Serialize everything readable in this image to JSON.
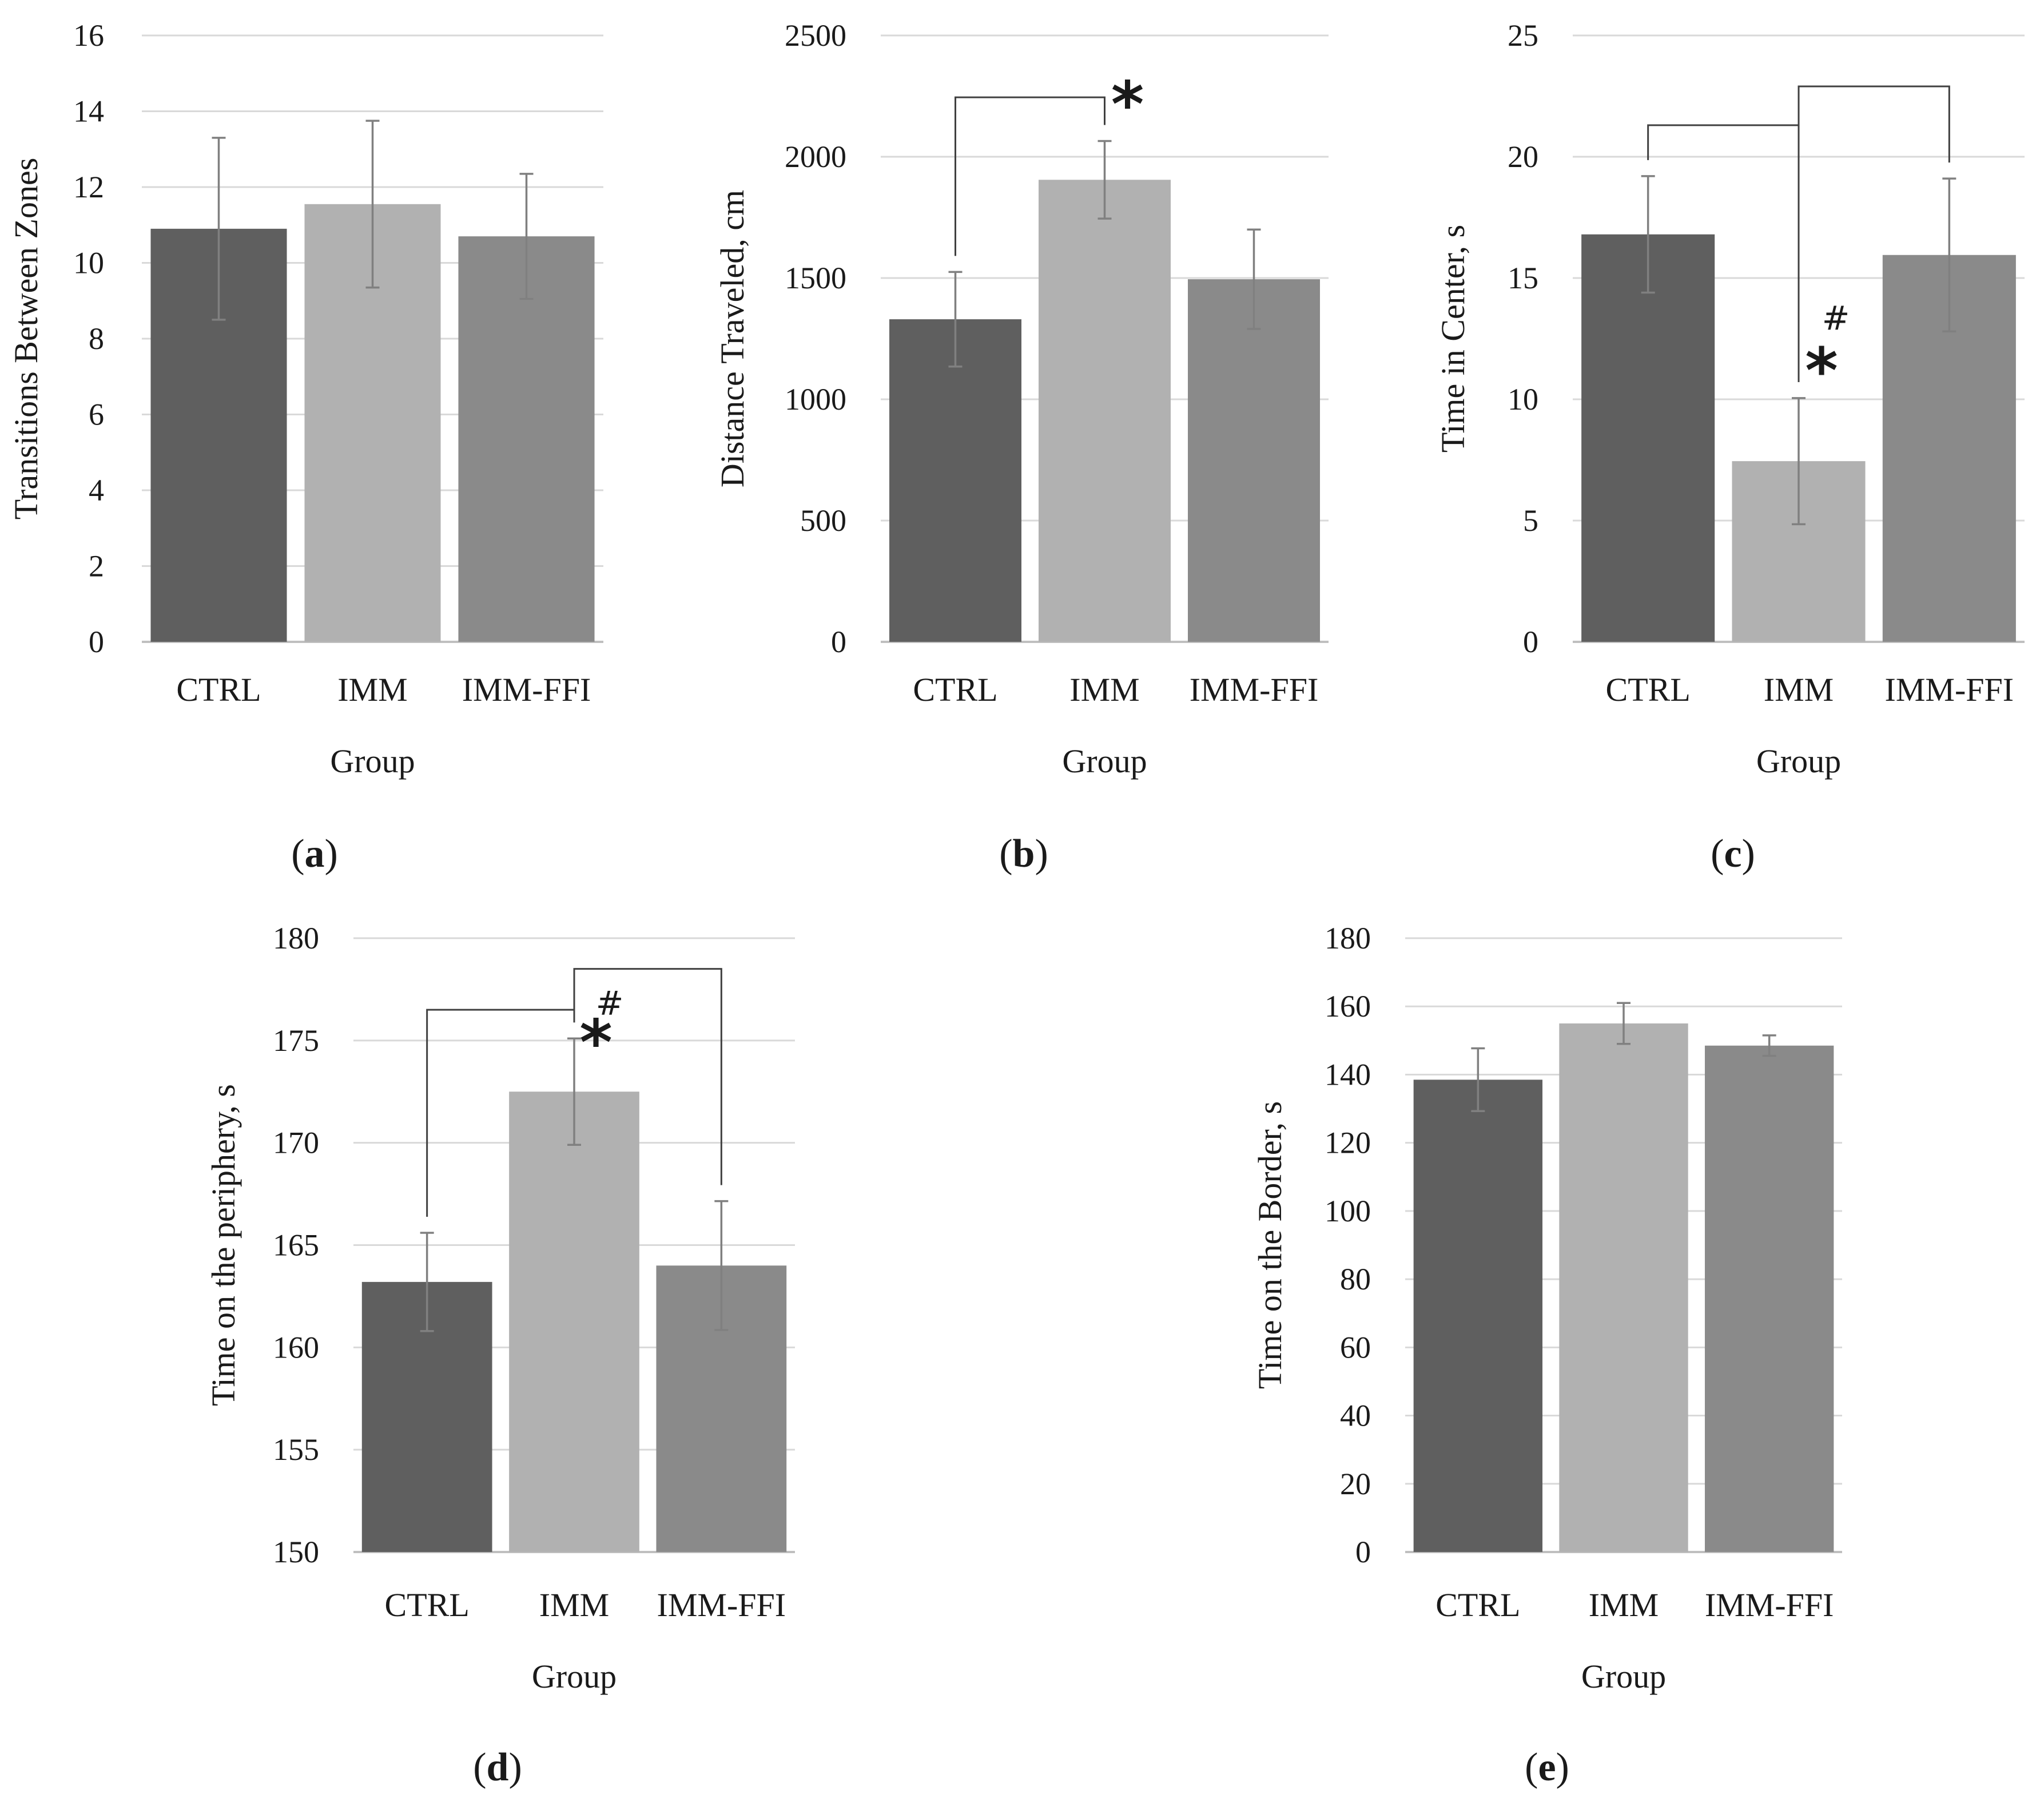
{
  "chart_data": [
    {
      "panel": "(a)",
      "type": "bar",
      "categories": [
        "CTRL",
        "IMM",
        "IMM-FFI"
      ],
      "values": [
        10.9,
        11.55,
        10.7
      ],
      "errors": [
        2.4,
        2.2,
        1.65
      ],
      "colors": [
        "#5f5f5f",
        "#b1b1b1",
        "#8a8a8a"
      ],
      "xlabel": "Group",
      "ylabel": "Transitions Between Zones",
      "ylim": [
        0,
        16
      ],
      "yticks": [
        0,
        2,
        4,
        6,
        8,
        10,
        12,
        14,
        16
      ],
      "grid": true,
      "significance": []
    },
    {
      "panel": "(b)",
      "type": "bar",
      "categories": [
        "CTRL",
        "IMM",
        "IMM-FFI"
      ],
      "values": [
        1330,
        1905,
        1495
      ],
      "errors": [
        195,
        160,
        205
      ],
      "colors": [
        "#5f5f5f",
        "#b1b1b1",
        "#8a8a8a"
      ],
      "xlabel": "Group",
      "ylabel": "Distance Traveled, cm",
      "ylim": [
        0,
        2500
      ],
      "yticks": [
        0,
        500,
        1000,
        1500,
        2000,
        2500
      ],
      "grid": true,
      "significance": [
        {
          "from": "CTRL",
          "to": "IMM",
          "bracket_top": 2245,
          "marks": [
            "*"
          ]
        }
      ]
    },
    {
      "panel": "(c)",
      "type": "bar",
      "categories": [
        "CTRL",
        "IMM",
        "IMM-FFI"
      ],
      "values": [
        16.8,
        7.45,
        15.95
      ],
      "errors": [
        2.4,
        2.6,
        3.15
      ],
      "colors": [
        "#5f5f5f",
        "#b1b1b1",
        "#8a8a8a"
      ],
      "xlabel": "Group",
      "ylabel": "Time in Center, s",
      "ylim": [
        0,
        25
      ],
      "yticks": [
        0,
        5,
        10,
        15,
        20,
        25
      ],
      "grid": true,
      "significance": [
        {
          "from": "CTRL",
          "to": "IMM",
          "bracket_top": 21.3,
          "marks": [
            "*"
          ]
        },
        {
          "from": "IMM",
          "to": "IMM-FFI",
          "bracket_top": 22.9,
          "marks": [
            "#"
          ]
        }
      ]
    },
    {
      "panel": "(d)",
      "type": "bar",
      "categories": [
        "CTRL",
        "IMM",
        "IMM-FFI"
      ],
      "values": [
        163.2,
        172.5,
        164.0
      ],
      "errors": [
        2.4,
        2.6,
        3.15
      ],
      "colors": [
        "#5f5f5f",
        "#b1b1b1",
        "#8a8a8a"
      ],
      "xlabel": "Group",
      "ylabel": "Time on the periphery, s",
      "ylim": [
        150,
        180
      ],
      "yticks": [
        150,
        155,
        160,
        165,
        170,
        175,
        180
      ],
      "grid": true,
      "significance": [
        {
          "from": "CTRL",
          "to": "IMM",
          "bracket_top": 176.5,
          "marks": [
            "*"
          ]
        },
        {
          "from": "IMM",
          "to": "IMM-FFI",
          "bracket_top": 178.5,
          "marks": [
            "#"
          ]
        }
      ]
    },
    {
      "panel": "(e)",
      "type": "bar",
      "categories": [
        "CTRL",
        "IMM",
        "IMM-FFI"
      ],
      "values": [
        138.5,
        155.0,
        148.5
      ],
      "errors": [
        9.2,
        6.0,
        3.0
      ],
      "colors": [
        "#5f5f5f",
        "#b1b1b1",
        "#8a8a8a"
      ],
      "xlabel": "Group",
      "ylabel": "Time on the Border, s",
      "ylim": [
        0,
        180
      ],
      "yticks": [
        0,
        20,
        40,
        60,
        80,
        100,
        120,
        140,
        160,
        180
      ],
      "grid": true,
      "significance": []
    }
  ]
}
